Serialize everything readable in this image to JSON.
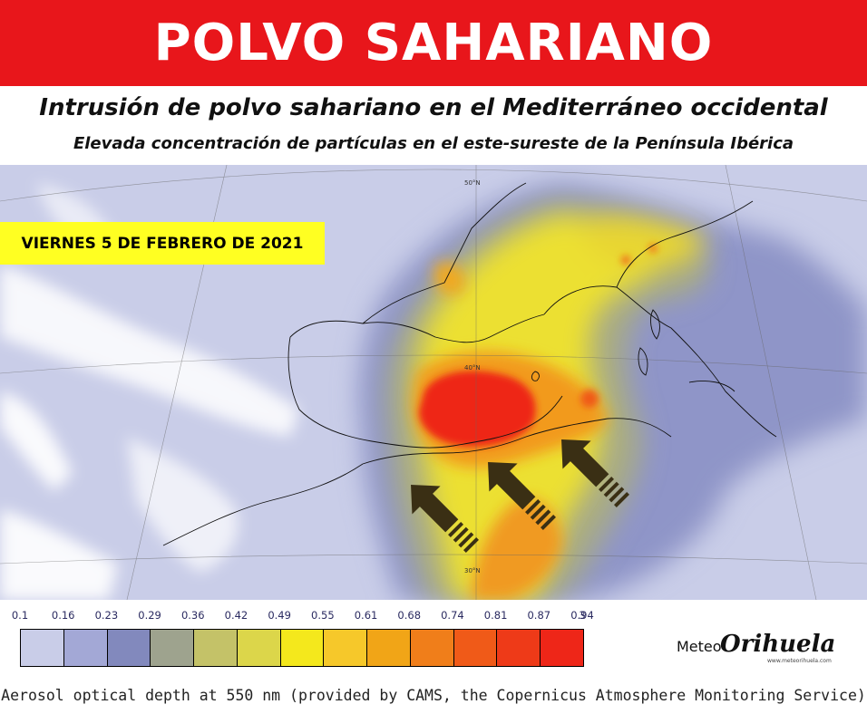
{
  "banner": {
    "title": "POLVO SAHARIANO"
  },
  "subtitle": "Intrusión de polvo sahariano en el Mediterráneo occidental",
  "subtitle2": "Elevada concentración de partículas en el este-sureste de la Península Ibérica",
  "date_badge": "VIERNES 5 DE FEBRERO DE 2021",
  "map": {
    "latitude_labels": [
      "50°N",
      "40°N",
      "30°N"
    ],
    "arrow_icons": [
      "arrow-northeast-icon",
      "arrow-northeast-icon",
      "arrow-northeast-icon"
    ]
  },
  "legend": {
    "ticks": [
      "0.1",
      "0.16",
      "0.23",
      "0.29",
      "0.36",
      "0.42",
      "0.49",
      "0.55",
      "0.61",
      "0.68",
      "0.74",
      "0.81",
      "0.87",
      "0.94",
      "3"
    ],
    "colors": [
      "#c9cde8",
      "#a3a8d6",
      "#8289bd",
      "#9ea38e",
      "#c4c268",
      "#dcd64a",
      "#f4e81c",
      "#f6c82a",
      "#f1a517",
      "#f07e1a",
      "#f05a18",
      "#ee3a18",
      "#ee2618"
    ],
    "caption": "Aerosol optical depth at 550 nm (provided by CAMS, the Copernicus Atmosphere Monitoring Service)"
  },
  "logo": {
    "part_a": "Meteo",
    "part_b": "Orihuela",
    "url": "www.meteorihuela.com"
  }
}
